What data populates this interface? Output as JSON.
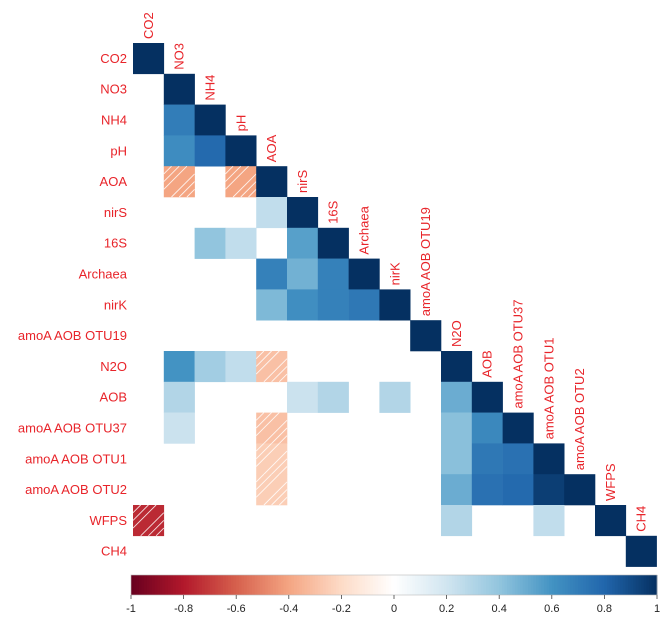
{
  "chart_data": {
    "type": "heatmap",
    "variables": [
      "CO2",
      "NO3",
      "NH4",
      "pH",
      "AOA",
      "nirS",
      "16S",
      "Archaea",
      "nirK",
      "amoA AOB OTU19",
      "N2O",
      "AOB",
      "amoA AOB OTU37",
      "amoA AOB OTU1",
      "amoA AOB OTU2",
      "WFPS",
      "CH4"
    ],
    "layout": "lower-triangle",
    "cells": [
      {
        "row": "CO2",
        "col": "CO2",
        "value": 1.0
      },
      {
        "row": "NO3",
        "col": "NO3",
        "value": 1.0
      },
      {
        "row": "NH4",
        "col": "NO3",
        "value": 0.7
      },
      {
        "row": "NH4",
        "col": "NH4",
        "value": 1.0
      },
      {
        "row": "pH",
        "col": "NO3",
        "value": 0.63
      },
      {
        "row": "pH",
        "col": "NH4",
        "value": 0.78
      },
      {
        "row": "pH",
        "col": "pH",
        "value": 1.0
      },
      {
        "row": "AOA",
        "col": "NO3",
        "value": -0.4
      },
      {
        "row": "AOA",
        "col": "pH",
        "value": -0.4
      },
      {
        "row": "AOA",
        "col": "AOA",
        "value": 1.0
      },
      {
        "row": "nirS",
        "col": "AOA",
        "value": 0.25
      },
      {
        "row": "nirS",
        "col": "nirS",
        "value": 1.0
      },
      {
        "row": "16S",
        "col": "NH4",
        "value": 0.4
      },
      {
        "row": "16S",
        "col": "pH",
        "value": 0.25
      },
      {
        "row": "16S",
        "col": "nirS",
        "value": 0.55
      },
      {
        "row": "16S",
        "col": "16S",
        "value": 1.0
      },
      {
        "row": "Archaea",
        "col": "AOA",
        "value": 0.68
      },
      {
        "row": "Archaea",
        "col": "nirS",
        "value": 0.48
      },
      {
        "row": "Archaea",
        "col": "16S",
        "value": 0.68
      },
      {
        "row": "Archaea",
        "col": "Archaea",
        "value": 1.0
      },
      {
        "row": "nirK",
        "col": "AOA",
        "value": 0.45
      },
      {
        "row": "nirK",
        "col": "nirS",
        "value": 0.62
      },
      {
        "row": "nirK",
        "col": "16S",
        "value": 0.68
      },
      {
        "row": "nirK",
        "col": "Archaea",
        "value": 0.72
      },
      {
        "row": "nirK",
        "col": "nirK",
        "value": 1.0
      },
      {
        "row": "amoA AOB OTU19",
        "col": "amoA AOB OTU19",
        "value": 1.0
      },
      {
        "row": "N2O",
        "col": "NO3",
        "value": 0.6
      },
      {
        "row": "N2O",
        "col": "NH4",
        "value": 0.35
      },
      {
        "row": "N2O",
        "col": "pH",
        "value": 0.25
      },
      {
        "row": "N2O",
        "col": "AOA",
        "value": -0.3
      },
      {
        "row": "N2O",
        "col": "N2O",
        "value": 1.0
      },
      {
        "row": "AOB",
        "col": "NO3",
        "value": 0.3
      },
      {
        "row": "AOB",
        "col": "nirS",
        "value": 0.22
      },
      {
        "row": "AOB",
        "col": "16S",
        "value": 0.3
      },
      {
        "row": "AOB",
        "col": "nirK",
        "value": 0.3
      },
      {
        "row": "AOB",
        "col": "N2O",
        "value": 0.5
      },
      {
        "row": "AOB",
        "col": "AOB",
        "value": 1.0
      },
      {
        "row": "amoA AOB OTU37",
        "col": "NO3",
        "value": 0.22
      },
      {
        "row": "amoA AOB OTU37",
        "col": "AOA",
        "value": -0.3
      },
      {
        "row": "amoA AOB OTU37",
        "col": "N2O",
        "value": 0.42
      },
      {
        "row": "amoA AOB OTU37",
        "col": "AOB",
        "value": 0.65
      },
      {
        "row": "amoA AOB OTU37",
        "col": "amoA AOB OTU37",
        "value": 1.0
      },
      {
        "row": "amoA AOB OTU1",
        "col": "AOA",
        "value": -0.25
      },
      {
        "row": "amoA AOB OTU1",
        "col": "N2O",
        "value": 0.42
      },
      {
        "row": "amoA AOB OTU1",
        "col": "AOB",
        "value": 0.72
      },
      {
        "row": "amoA AOB OTU1",
        "col": "amoA AOB OTU37",
        "value": 0.75
      },
      {
        "row": "amoA AOB OTU1",
        "col": "amoA AOB OTU1",
        "value": 1.0
      },
      {
        "row": "amoA AOB OTU2",
        "col": "AOA",
        "value": -0.25
      },
      {
        "row": "amoA AOB OTU2",
        "col": "N2O",
        "value": 0.5
      },
      {
        "row": "amoA AOB OTU2",
        "col": "AOB",
        "value": 0.75
      },
      {
        "row": "amoA AOB OTU2",
        "col": "amoA AOB OTU37",
        "value": 0.78
      },
      {
        "row": "amoA AOB OTU2",
        "col": "amoA AOB OTU1",
        "value": 0.95
      },
      {
        "row": "amoA AOB OTU2",
        "col": "amoA AOB OTU2",
        "value": 1.0
      },
      {
        "row": "WFPS",
        "col": "CO2",
        "value": -0.75
      },
      {
        "row": "WFPS",
        "col": "N2O",
        "value": 0.3
      },
      {
        "row": "WFPS",
        "col": "amoA AOB OTU1",
        "value": 0.25
      },
      {
        "row": "WFPS",
        "col": "WFPS",
        "value": 1.0
      },
      {
        "row": "CH4",
        "col": "CH4",
        "value": 1.0
      }
    ],
    "colorbar": {
      "range": [
        -1,
        1
      ],
      "ticks": [
        "-1",
        "-0.8",
        "-0.6",
        "-0.4",
        "-0.2",
        "0",
        "0.2",
        "0.4",
        "0.6",
        "0.8",
        "1"
      ]
    },
    "negative_cells_hatched": true,
    "legend": "bottom",
    "grid": false
  },
  "colors": {
    "label": "#e8242a",
    "scale": [
      "#67001f",
      "#b2182b",
      "#d6604d",
      "#f4a582",
      "#fddbc7",
      "#ffffff",
      "#d1e5f0",
      "#92c5de",
      "#4393c3",
      "#2166ac",
      "#053061"
    ]
  }
}
